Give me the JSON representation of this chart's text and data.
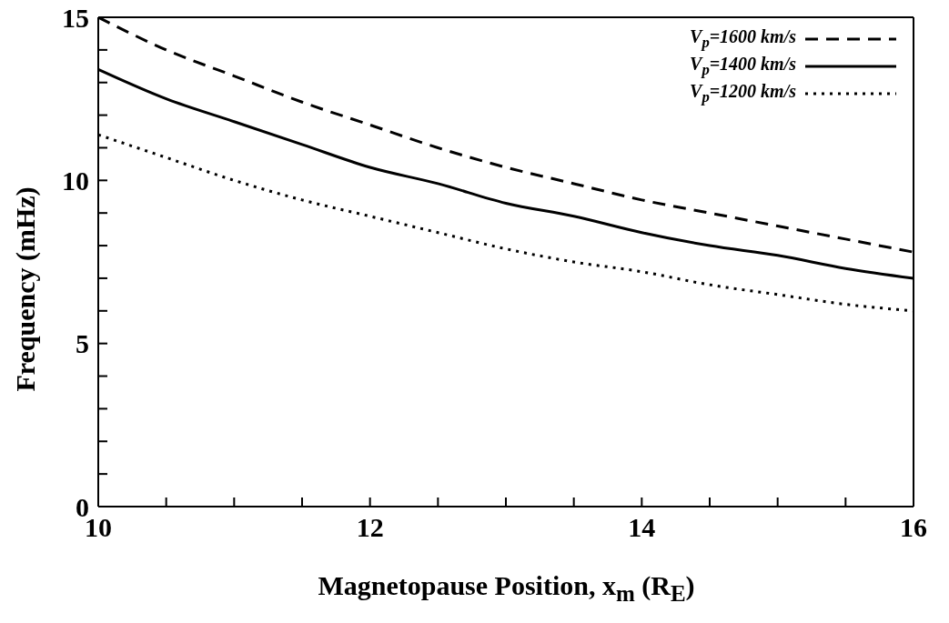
{
  "chart_data": {
    "type": "line",
    "xlabel": "Magnetopause Position, x$_{m}$ (R$_{E}$)",
    "ylabel": "Frequency (mHz)",
    "x": [
      10,
      10.5,
      11,
      11.5,
      12,
      12.5,
      13,
      13.5,
      14,
      14.5,
      15,
      15.5,
      16
    ],
    "xlim": [
      10,
      16
    ],
    "xticks": [
      10,
      {
        "value": 10.5,
        "label": null
      },
      {
        "value": 11,
        "label": null
      },
      {
        "value": 11.5,
        "label": null
      },
      12,
      {
        "value": 12.5,
        "label": null
      },
      {
        "value": 13,
        "label": null
      },
      {
        "value": 13.5,
        "label": null
      },
      14,
      {
        "value": 14.5,
        "label": null
      },
      {
        "value": 15,
        "label": null
      },
      {
        "value": 15.5,
        "label": null
      },
      16
    ],
    "ylim": [
      0,
      15
    ],
    "yticks": [
      0,
      {
        "value": 1,
        "label": null
      },
      {
        "value": 2,
        "label": null
      },
      {
        "value": 3,
        "label": null
      },
      {
        "value": 4,
        "label": null
      },
      5,
      {
        "value": 6,
        "label": null
      },
      {
        "value": 7,
        "label": null
      },
      {
        "value": 8,
        "label": null
      },
      {
        "value": 9,
        "label": null
      },
      10,
      {
        "value": 11,
        "label": null
      },
      {
        "value": 12,
        "label": null
      },
      {
        "value": 13,
        "label": null
      },
      {
        "value": 14,
        "label": null
      },
      15
    ],
    "legend": "top right",
    "marker": "none",
    "series": [
      {
        "name": "V$_{p}$=1600 km/s",
        "color": "#000000",
        "line_style": "dashed",
        "values": [
          15.0,
          14.0,
          13.2,
          12.4,
          11.7,
          11.0,
          10.4,
          9.9,
          9.4,
          9.0,
          8.6,
          8.2,
          7.8
        ]
      },
      {
        "name": "V$_{p}$=1400 km/s",
        "color": "#000000",
        "line_style": "solid",
        "values": [
          13.4,
          12.5,
          11.8,
          11.1,
          10.4,
          9.9,
          9.3,
          8.9,
          8.4,
          8.0,
          7.7,
          7.3,
          7.0
        ]
      },
      {
        "name": "V$_{p}$=1200 km/s",
        "color": "#000000",
        "line_style": "dotted",
        "values": [
          11.4,
          10.7,
          10.0,
          9.4,
          8.9,
          8.4,
          7.9,
          7.5,
          7.2,
          6.8,
          6.5,
          6.2,
          6.0
        ]
      }
    ]
  }
}
